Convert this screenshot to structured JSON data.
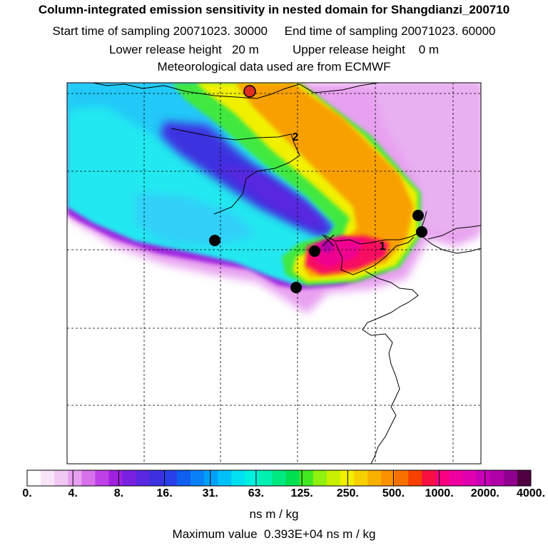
{
  "title": "Column-integrated emission sensitivity in nested domain for Shangdianzi_200710",
  "sampling": {
    "start_label": "Start time of sampling",
    "start_value": "20071023. 30000",
    "end_label": "End time of sampling",
    "end_value": "20071023. 60000"
  },
  "release": {
    "lower_label": "Lower release height",
    "lower_value": "20 m",
    "upper_label": "Upper release height",
    "upper_value": "0 m"
  },
  "meteo": "Meteorological data used are from ECMWF",
  "map": {
    "labels": [
      "2",
      "1"
    ],
    "colors": {
      "station_marker": "#e03020",
      "point_marker": "#000000"
    }
  },
  "colorbar": {
    "tick_labels": [
      "0.",
      "4.",
      "8.",
      "16.",
      "31.",
      "63.",
      "125.",
      "250.",
      "500.",
      "1000.",
      "2000.",
      "4000."
    ],
    "colors": [
      "#ffffff",
      "#f8e4f8",
      "#f0c8f4",
      "#e8a0f0",
      "#d870ec",
      "#c040e8",
      "#a020e0",
      "#7a20e0",
      "#5a28e0",
      "#3c30e0",
      "#2840e8",
      "#1060f0",
      "#0a80f8",
      "#00a0f8",
      "#00c0f8",
      "#00e0f0",
      "#00f0e0",
      "#00f0b0",
      "#00e880",
      "#00e050",
      "#40e820",
      "#90f010",
      "#c8f000",
      "#f0f000",
      "#f8d000",
      "#f8b000",
      "#f89000",
      "#f87000",
      "#f84000",
      "#f81040",
      "#f80080",
      "#f000a0",
      "#e000b0",
      "#c800b8",
      "#b000a8",
      "#900090",
      "#500040"
    ],
    "unit": "ns m / kg"
  },
  "max_value": {
    "label": "Maximum value",
    "value": "0.393E+04 ns m / kg"
  }
}
